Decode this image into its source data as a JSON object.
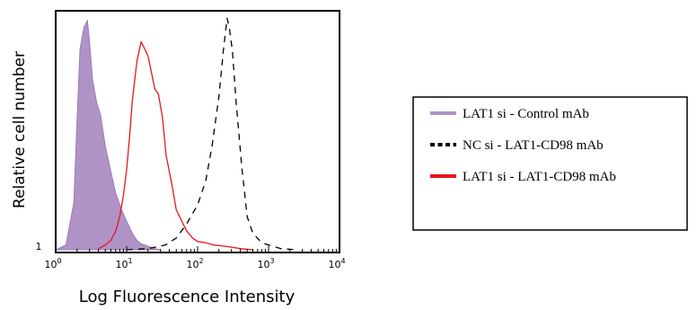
{
  "chart_data": {
    "type": "area",
    "xlabel": "Log Fluorescence  Intensity",
    "ylabel": "Relative cell number",
    "x_scale": "log",
    "xlim": [
      1,
      10000
    ],
    "ylim": [
      0,
      100
    ],
    "grid": false,
    "legend_placement": "right",
    "x_ticks": [
      {
        "base": "10",
        "exp": "0",
        "value": 1
      },
      {
        "base": "10",
        "exp": "1",
        "value": 10
      },
      {
        "base": "10",
        "exp": "2",
        "value": 100
      },
      {
        "base": "10",
        "exp": "3",
        "value": 1000
      },
      {
        "base": "10",
        "exp": "4",
        "value": 10000
      }
    ],
    "y_tick_label": "1",
    "series": [
      {
        "name": "LAT1 si - Control mAb",
        "style": "filled",
        "color": "#b093c6",
        "edge_color": "#9a7bb4",
        "x": [
          1,
          1.4,
          1.8,
          2.0,
          2.2,
          2.5,
          2.8,
          3.0,
          3.3,
          3.8,
          4.3,
          5.0,
          6.0,
          7.0,
          8.5,
          10,
          12,
          14,
          16,
          20,
          25,
          30
        ],
        "y": [
          0,
          2,
          20,
          55,
          85,
          94,
          97,
          88,
          72,
          62,
          57,
          44,
          33,
          24,
          17,
          12,
          7,
          4,
          2.5,
          1.5,
          0.5,
          0
        ]
      },
      {
        "name": "NC si - LAT1-CD98 mAb",
        "style": "dashed",
        "color": "#000000",
        "x": [
          10,
          20,
          35,
          50,
          70,
          100,
          130,
          160,
          200,
          230,
          260,
          280,
          310,
          350,
          420,
          500,
          600,
          800,
          1000,
          1500,
          2500
        ],
        "y": [
          0,
          0.5,
          2,
          5,
          11,
          19,
          29,
          44,
          65,
          84,
          98,
          94,
          84,
          62,
          35,
          14,
          7,
          3,
          2,
          0.5,
          0
        ]
      },
      {
        "name": "LAT1 si - LAT1-CD98 mAb",
        "style": "line",
        "color": "#e8141e",
        "x": [
          4,
          5,
          6,
          7,
          8,
          9,
          10,
          11,
          12,
          14,
          16,
          18,
          20,
          22,
          25,
          28,
          32,
          36,
          40,
          45,
          50,
          60,
          70,
          85,
          100,
          130,
          170,
          250,
          400,
          600
        ],
        "y": [
          0.5,
          2,
          4,
          8,
          14,
          23,
          34,
          48,
          63,
          80,
          88,
          85,
          82,
          76,
          68,
          66,
          56,
          40,
          33,
          25,
          17,
          12,
          8,
          5,
          3.5,
          3,
          2,
          1.5,
          0.5,
          0
        ]
      }
    ]
  }
}
